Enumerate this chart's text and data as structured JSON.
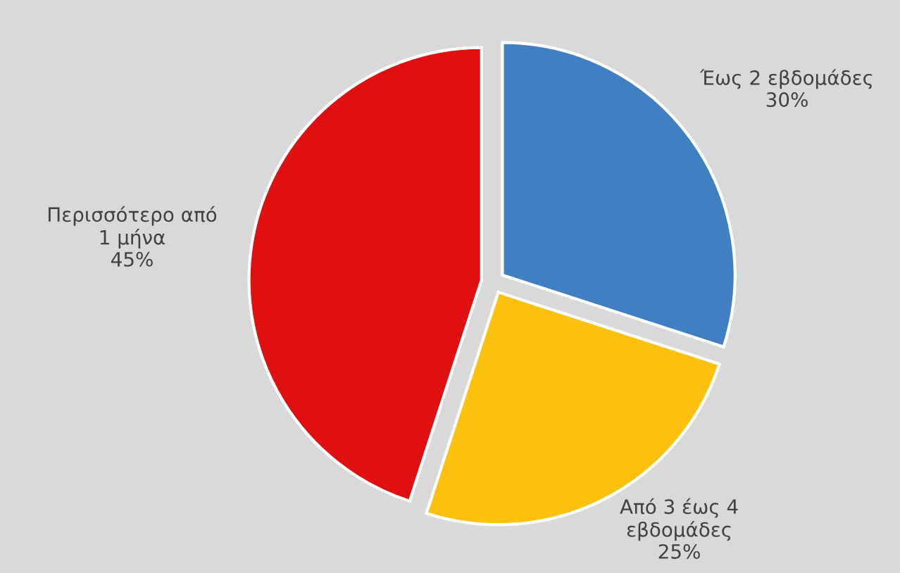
{
  "chart_data": {
    "type": "pie",
    "categories": [
      "Έως 2 εβδομάδες",
      "Από 3 έως 4\nεβδομάδες",
      "Περισσότερο από\n1 μήνα"
    ],
    "values": [
      30,
      25,
      45
    ],
    "value_labels": [
      "30%",
      "25%",
      "45%"
    ],
    "colors": [
      "#3f7fc2",
      "#fcc10e",
      "#e01010"
    ]
  }
}
